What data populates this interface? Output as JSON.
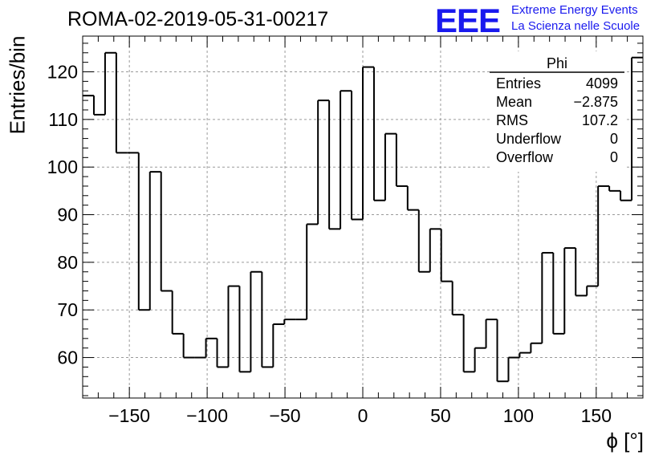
{
  "page": {
    "title": "ROMA-02-2019-05-31-00217",
    "logo_text": "EEE",
    "logo_line1": "Extreme Energy Events",
    "logo_line2": "La Scienza nelle Scuole"
  },
  "stats": {
    "name": "Phi",
    "rows": [
      {
        "label": "Entries",
        "value": "4099"
      },
      {
        "label": "Mean",
        "value": "−2.875"
      },
      {
        "label": "RMS",
        "value": "107.2"
      },
      {
        "label": "Underflow",
        "value": "0"
      },
      {
        "label": "Overflow",
        "value": "0"
      }
    ]
  },
  "chart_data": {
    "type": "histogram",
    "xlabel": "ϕ [°]",
    "ylabel": "Entries/bin",
    "xlim": [
      -180,
      180
    ],
    "ylim": [
      51.5,
      127.5
    ],
    "bin_width": 7.2,
    "grid": true,
    "xticks": [
      -150,
      -100,
      -50,
      0,
      50,
      100,
      150
    ],
    "xtick_labels": [
      "−150",
      "−100",
      "−50",
      "0",
      "50",
      "100",
      "150"
    ],
    "yticks": [
      60,
      70,
      80,
      90,
      100,
      110,
      120
    ],
    "values": [
      115,
      111,
      124,
      103,
      103,
      70,
      99,
      74,
      65,
      60,
      60,
      64,
      58,
      75,
      57,
      78,
      58,
      67,
      68,
      68,
      88,
      114,
      87,
      116,
      89,
      121,
      93,
      107,
      96,
      91,
      78,
      87,
      76,
      69,
      57,
      62,
      68,
      55,
      60,
      61,
      63,
      82,
      65,
      83,
      73,
      75,
      96,
      95,
      93,
      123
    ]
  }
}
